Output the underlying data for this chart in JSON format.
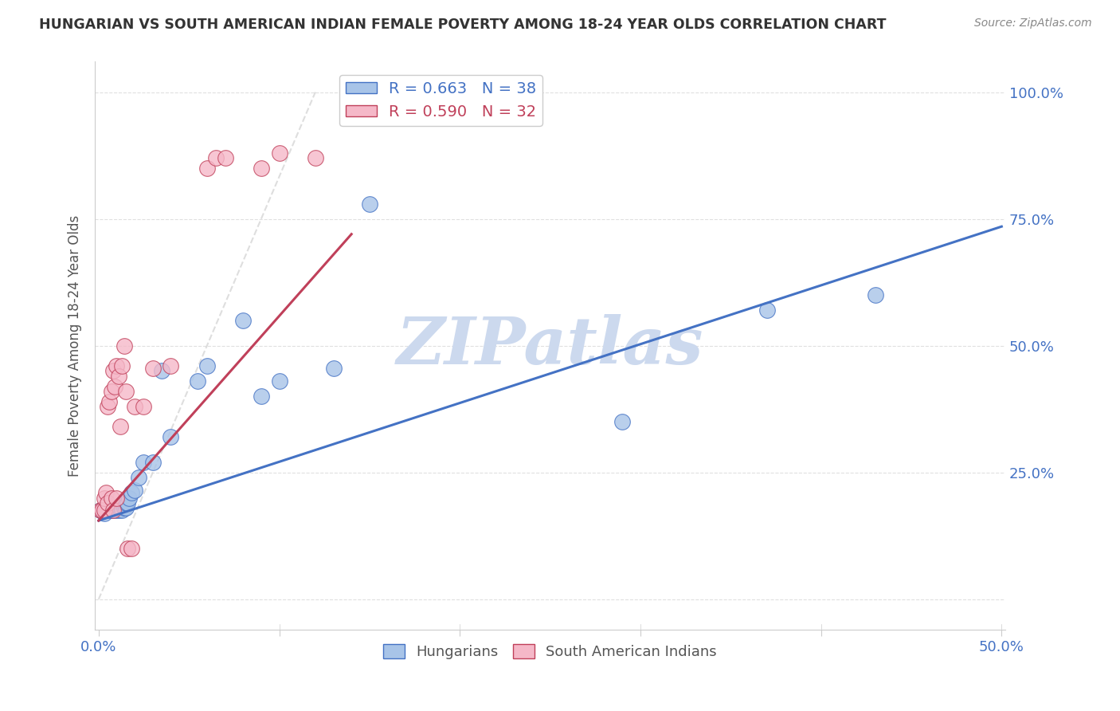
{
  "title": "HUNGARIAN VS SOUTH AMERICAN INDIAN FEMALE POVERTY AMONG 18-24 YEAR OLDS CORRELATION CHART",
  "source": "Source: ZipAtlas.com",
  "ylabel": "Female Poverty Among 18-24 Year Olds",
  "xlim": [
    -0.002,
    0.502
  ],
  "ylim": [
    -0.06,
    1.06
  ],
  "xtick_positions": [
    0.0,
    0.1,
    0.2,
    0.3,
    0.4,
    0.5
  ],
  "xtick_labels": [
    "0.0%",
    "",
    "",
    "",
    "",
    "50.0%"
  ],
  "ytick_positions": [
    0.0,
    0.25,
    0.5,
    0.75,
    1.0
  ],
  "ytick_labels_right": [
    "",
    "25.0%",
    "50.0%",
    "75.0%",
    "100.0%"
  ],
  "blue_R": 0.663,
  "blue_N": 38,
  "pink_R": 0.59,
  "pink_N": 32,
  "blue_color": "#a8c4e8",
  "pink_color": "#f5b8c8",
  "blue_line_color": "#4472c4",
  "pink_line_color": "#c0405a",
  "ref_line_color": "#c8c8c8",
  "watermark_color": "#ccd9ee",
  "blue_x": [
    0.001,
    0.002,
    0.003,
    0.004,
    0.005,
    0.006,
    0.006,
    0.007,
    0.008,
    0.008,
    0.009,
    0.01,
    0.01,
    0.011,
    0.012,
    0.013,
    0.014,
    0.015,
    0.015,
    0.016,
    0.017,
    0.018,
    0.02,
    0.022,
    0.025,
    0.03,
    0.035,
    0.04,
    0.055,
    0.06,
    0.08,
    0.09,
    0.1,
    0.13,
    0.15,
    0.29,
    0.37,
    0.43
  ],
  "blue_y": [
    0.175,
    0.175,
    0.17,
    0.175,
    0.178,
    0.175,
    0.18,
    0.175,
    0.175,
    0.178,
    0.18,
    0.175,
    0.18,
    0.175,
    0.178,
    0.175,
    0.18,
    0.18,
    0.19,
    0.19,
    0.2,
    0.21,
    0.215,
    0.24,
    0.27,
    0.27,
    0.45,
    0.32,
    0.43,
    0.46,
    0.55,
    0.4,
    0.43,
    0.455,
    0.78,
    0.35,
    0.57,
    0.6
  ],
  "pink_x": [
    0.001,
    0.002,
    0.003,
    0.003,
    0.004,
    0.005,
    0.005,
    0.006,
    0.007,
    0.007,
    0.008,
    0.008,
    0.009,
    0.01,
    0.01,
    0.011,
    0.012,
    0.013,
    0.014,
    0.015,
    0.016,
    0.018,
    0.02,
    0.025,
    0.03,
    0.04,
    0.06,
    0.065,
    0.07,
    0.09,
    0.1,
    0.12
  ],
  "pink_y": [
    0.175,
    0.175,
    0.175,
    0.2,
    0.21,
    0.19,
    0.38,
    0.39,
    0.2,
    0.41,
    0.175,
    0.45,
    0.42,
    0.2,
    0.46,
    0.44,
    0.34,
    0.46,
    0.5,
    0.41,
    0.1,
    0.1,
    0.38,
    0.38,
    0.455,
    0.46,
    0.85,
    0.87,
    0.87,
    0.85,
    0.88,
    0.87
  ],
  "blue_trend": [
    0.155,
    0.735
  ],
  "pink_trend_x": [
    0.0,
    0.14
  ],
  "pink_trend_y": [
    0.155,
    0.72
  ]
}
